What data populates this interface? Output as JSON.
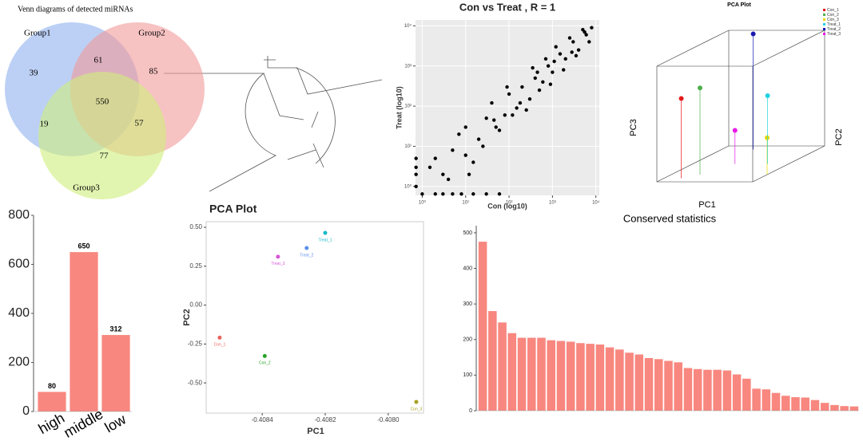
{
  "chart_data": [
    {
      "type": "venn",
      "title": "Venn diagrams of detected miRNAs",
      "series": [
        {
          "name": "Group1",
          "color": "#8fb0ee"
        },
        {
          "name": "Group2",
          "color": "#f29a9a"
        },
        {
          "name": "Group3",
          "color": "#cfee7c"
        }
      ],
      "values": [
        39,
        85,
        77,
        61,
        19,
        57,
        550
      ]
    },
    {
      "type": "scatter",
      "title": "Con  vs  Treat , R = 1",
      "xlabel": "Con (log10)",
      "ylabel": "Treat (log10)",
      "xlog": true,
      "ylog": true,
      "xlim": [
        0.7,
        12000
      ],
      "ylim": [
        0.6,
        14000
      ],
      "xticks": [
        {
          "value": 1,
          "label": "10⁰"
        },
        {
          "value": 10,
          "label": "10¹"
        },
        {
          "value": 100,
          "label": "10²"
        },
        {
          "value": 1000,
          "label": "10³"
        },
        {
          "value": 10000,
          "label": "10⁴"
        }
      ],
      "yticks": [
        {
          "value": 1,
          "label": "10⁰"
        },
        {
          "value": 10,
          "label": "10¹"
        },
        {
          "value": 100,
          "label": "10²"
        },
        {
          "value": 1000,
          "label": "10³"
        },
        {
          "value": 10000,
          "label": "10⁴"
        }
      ],
      "grid": true,
      "background": "#ebebeb",
      "series": [
        {
          "color": "#000000",
          "x": [
            3,
            5,
            10,
            20,
            30,
            50,
            80,
            100,
            150,
            200,
            300,
            400,
            600,
            800,
            1000,
            1500,
            2000,
            3000,
            4000,
            5000,
            6000,
            8000,
            2,
            4,
            7,
            15,
            25,
            40,
            60,
            90,
            120,
            250,
            350,
            500,
            700,
            900,
            1200,
            1800,
            2500,
            3500,
            7000,
            10,
            12,
            1.5,
            1,
            2,
            3,
            5,
            8,
            15,
            30,
            60,
            0.72,
            0.72,
            0.72,
            0.72,
            45,
            180,
            450,
            1100,
            2800,
            5500
          ],
          "values": [
            2,
            8,
            6,
            15,
            50,
            30,
            60,
            200,
            90,
            300,
            150,
            500,
            400,
            1000,
            700,
            2000,
            1500,
            4000,
            2500,
            8000,
            6000,
            9000,
            5,
            1.5,
            20,
            4,
            10,
            120,
            25,
            300,
            60,
            80,
            900,
            250,
            1500,
            350,
            3000,
            800,
            5000,
            1800,
            4000,
            30,
            2,
            3,
            0.65,
            0.65,
            0.65,
            0.65,
            0.65,
            0.65,
            0.65,
            0.65,
            1,
            2,
            3,
            5,
            45,
            120,
            700,
            1300,
            2200,
            7000
          ]
        }
      ]
    },
    {
      "type": "scatter3d",
      "title": "PCA Plot",
      "xlabel": "PC1",
      "ylabel": "PC2",
      "zlabel": "PC3",
      "series": [
        {
          "name": "Con_1",
          "color": "#e41a1c",
          "x": [
            0.18
          ],
          "y": [
            0.1
          ],
          "z": [
            0.69
          ]
        },
        {
          "name": "Con_2",
          "color": "#4daf4a",
          "x": [
            0.3
          ],
          "y": [
            0.2
          ],
          "z": [
            0.75
          ]
        },
        {
          "name": "Con_3",
          "color": "#e6d800",
          "x": [
            1.0
          ],
          "y": [
            0.2
          ],
          "z": [
            0.32
          ]
        },
        {
          "name": "Treat_1",
          "color": "#22d3e0",
          "x": [
            0.78
          ],
          "y": [
            0.5
          ],
          "z": [
            0.59
          ]
        },
        {
          "name": "Treat_2",
          "color": "#1a1ab0",
          "x": [
            0.33
          ],
          "y": [
            0.9
          ],
          "z": [
            1.0
          ]
        },
        {
          "name": "Treat_3",
          "color": "#e81ae8",
          "x": [
            0.44
          ],
          "y": [
            0.5
          ],
          "z": [
            0.29
          ]
        }
      ]
    },
    {
      "type": "bar",
      "categories": [
        "high",
        "middle",
        "low"
      ],
      "values": [
        80,
        650,
        312
      ],
      "color": "#f8877f",
      "ylim": [
        0,
        800
      ],
      "yticks": [
        0,
        200,
        400,
        600,
        800
      ],
      "data_labels": true,
      "xtick_rotation": 30
    },
    {
      "type": "scatter",
      "title": "PCA Plot",
      "xlabel": "PC1",
      "ylabel": "PC2",
      "xlim": [
        -0.408578,
        -0.407888
      ],
      "ylim": [
        -0.694,
        0.536
      ],
      "xticks": [
        -0.4084,
        -0.4082,
        -0.408
      ],
      "yticks": [
        {
          "value": 0.5,
          "label": "0.50"
        },
        0.25,
        {
          "value": 0,
          "label": "0.00"
        },
        -0.25,
        {
          "value": -0.5,
          "label": "-0.50"
        }
      ],
      "xtick_labels": [
        "-0.4084",
        "-0.4082",
        "-0.4080"
      ],
      "grid": false,
      "point_labels": true,
      "series": [
        {
          "name": "Con_1",
          "color": "#e8625a",
          "x": [
            -0.408535
          ],
          "values": [
            -0.209
          ]
        },
        {
          "name": "Con_2",
          "color": "#2aa22a",
          "x": [
            -0.408392
          ],
          "values": [
            -0.327
          ]
        },
        {
          "name": "Con_3",
          "color": "#a8a020",
          "x": [
            -0.407911
          ],
          "values": [
            -0.622
          ]
        },
        {
          "name": "Treat_1",
          "color": "#18b8c8",
          "x": [
            -0.4082
          ],
          "values": [
            0.464
          ]
        },
        {
          "name": "Treat_2",
          "color": "#5a8ee8",
          "x": [
            -0.408259
          ],
          "values": [
            0.367
          ]
        },
        {
          "name": "Treat_3",
          "color": "#d855d8",
          "x": [
            -0.40835
          ],
          "values": [
            0.311
          ]
        }
      ]
    },
    {
      "type": "bar",
      "title": "Conserved statistics",
      "categories": [
        null,
        null,
        null,
        null,
        null,
        null,
        null,
        null,
        null,
        null,
        null,
        null,
        null,
        null,
        null,
        null,
        null,
        null,
        null,
        null,
        null,
        null,
        null,
        null,
        null,
        null,
        null,
        null,
        null,
        null,
        null,
        null,
        null,
        null,
        null,
        null,
        null,
        null,
        null
      ],
      "values": [
        475,
        280,
        248,
        218,
        205,
        205,
        205,
        198,
        196,
        194,
        190,
        188,
        186,
        178,
        172,
        163,
        158,
        148,
        145,
        140,
        136,
        120,
        117,
        115,
        115,
        113,
        102,
        90,
        62,
        60,
        50,
        42,
        38,
        37,
        30,
        22,
        16,
        13,
        12
      ],
      "color": "#f8877f",
      "ylim": [
        0,
        520
      ],
      "yticks": [
        0,
        100,
        200,
        300,
        400,
        500
      ]
    }
  ]
}
